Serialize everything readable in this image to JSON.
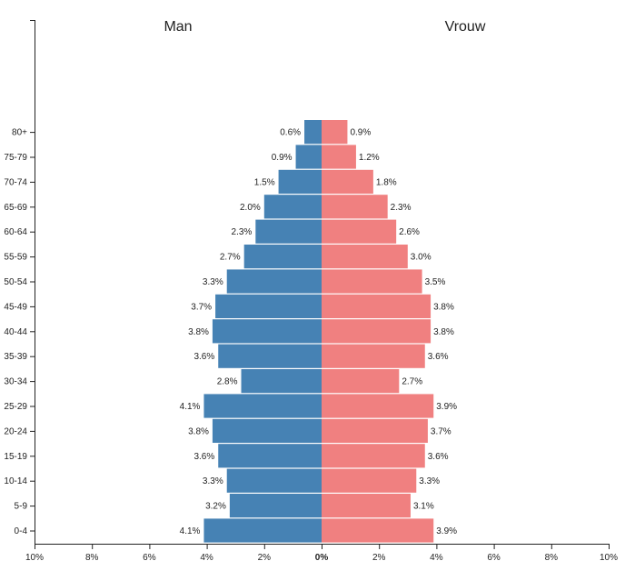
{
  "chart_data": {
    "type": "bar",
    "orientation": "horizontal",
    "layout": "population-pyramid",
    "categories": [
      "80+",
      "75-79",
      "70-74",
      "65-69",
      "60-64",
      "55-59",
      "50-54",
      "45-49",
      "40-44",
      "35-39",
      "30-34",
      "25-29",
      "20-24",
      "15-19",
      "10-14",
      "5-9",
      "0-4"
    ],
    "series": [
      {
        "name": "Man",
        "side": "left",
        "color": "#4682b4",
        "values": [
          0.6,
          0.9,
          1.5,
          2.0,
          2.3,
          2.7,
          3.3,
          3.7,
          3.8,
          3.6,
          2.8,
          4.1,
          3.8,
          3.6,
          3.3,
          3.2,
          4.1
        ],
        "labels": [
          "0.6%",
          "0.9%",
          "1.5%",
          "2.0%",
          "2.3%",
          "2.7%",
          "3.3%",
          "3.7%",
          "3.8%",
          "3.6%",
          "2.8%",
          "4.1%",
          "3.8%",
          "3.6%",
          "3.3%",
          "3.2%",
          "4.1%"
        ]
      },
      {
        "name": "Vrouw",
        "side": "right",
        "color": "#f08080",
        "values": [
          0.9,
          1.2,
          1.8,
          2.3,
          2.6,
          3.0,
          3.5,
          3.8,
          3.8,
          3.6,
          2.7,
          3.9,
          3.7,
          3.6,
          3.3,
          3.1,
          3.9
        ],
        "labels": [
          "0.9%",
          "1.2%",
          "1.8%",
          "2.3%",
          "2.6%",
          "3.0%",
          "3.5%",
          "3.8%",
          "3.8%",
          "3.6%",
          "2.7%",
          "3.9%",
          "3.7%",
          "3.6%",
          "3.3%",
          "3.1%",
          "3.9%"
        ]
      }
    ],
    "xlim": [
      -10,
      10
    ],
    "x_ticks": [
      -10,
      -8,
      -6,
      -4,
      -2,
      0,
      2,
      4,
      6,
      8,
      10
    ],
    "x_tick_labels": [
      "10%",
      "8%",
      "6%",
      "4%",
      "2%",
      "0%",
      "2%",
      "4%",
      "6%",
      "8%",
      "10%"
    ],
    "grid": false
  }
}
